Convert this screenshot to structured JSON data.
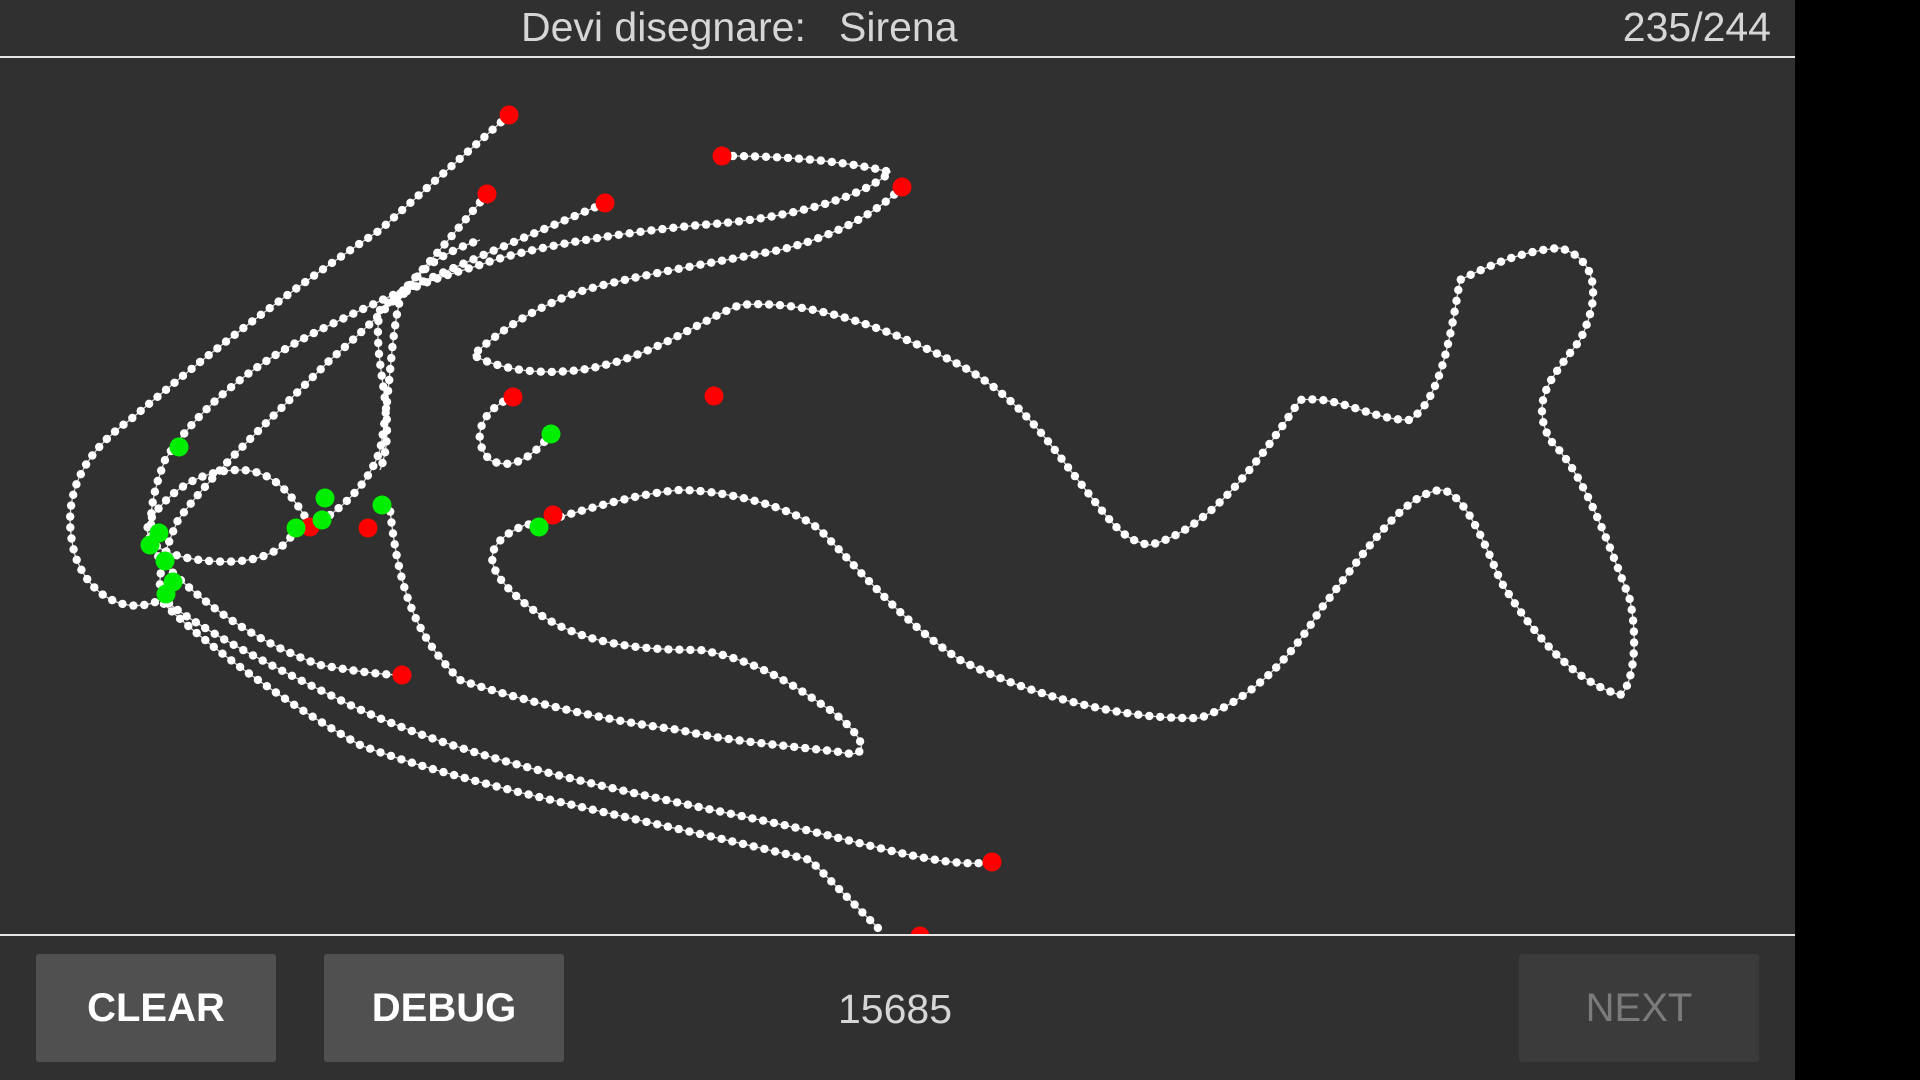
{
  "header": {
    "prompt_label": "Devi disegnare:",
    "prompt_word": "Sirena",
    "counter": "235/244"
  },
  "footer": {
    "clear_label": "CLEAR",
    "debug_label": "DEBUG",
    "score": "15685",
    "next_label": "NEXT",
    "next_enabled": false
  },
  "colors": {
    "background": "#303030",
    "stroke_point": "#ffffff",
    "endpoint": "#ff0000",
    "intersection": "#00ee00"
  }
}
